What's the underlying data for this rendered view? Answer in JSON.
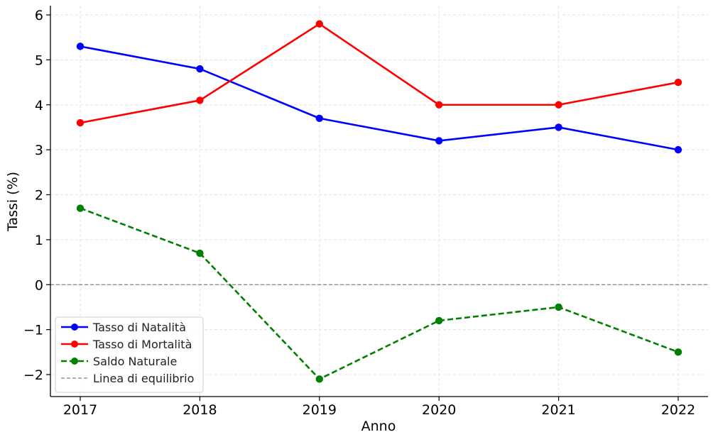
{
  "chart_data": {
    "type": "line",
    "title": "",
    "xlabel": "Anno",
    "ylabel": "Tassi (%)",
    "categories": [
      "2017",
      "2018",
      "2019",
      "2020",
      "2021",
      "2022"
    ],
    "ylim": [
      -2.4,
      6.2
    ],
    "yticks": [
      -2,
      -1,
      0,
      1,
      2,
      3,
      4,
      5,
      6
    ],
    "ytick_labels": [
      "−2",
      "−1",
      "0",
      "1",
      "2",
      "3",
      "4",
      "5",
      "6"
    ],
    "grid": true,
    "legend_position": "lower-left",
    "series": [
      {
        "name": "Tasso di Natalità",
        "values": [
          5.3,
          4.8,
          3.7,
          3.2,
          3.5,
          3.0
        ],
        "color": "#0000ff",
        "style": "solid",
        "marker": "circle"
      },
      {
        "name": "Tasso di Mortalità",
        "values": [
          3.6,
          4.1,
          5.8,
          4.0,
          4.0,
          4.5
        ],
        "color": "#ff0000",
        "style": "solid",
        "marker": "circle"
      },
      {
        "name": "Saldo Naturale",
        "values": [
          1.7,
          0.7,
          -2.1,
          -0.8,
          -0.5,
          -1.5
        ],
        "color": "#008000",
        "style": "dashed",
        "marker": "circle"
      }
    ],
    "reference_line": {
      "name": "Linea di equilibrio",
      "y": 0,
      "color": "#808080",
      "style": "dashed"
    }
  }
}
